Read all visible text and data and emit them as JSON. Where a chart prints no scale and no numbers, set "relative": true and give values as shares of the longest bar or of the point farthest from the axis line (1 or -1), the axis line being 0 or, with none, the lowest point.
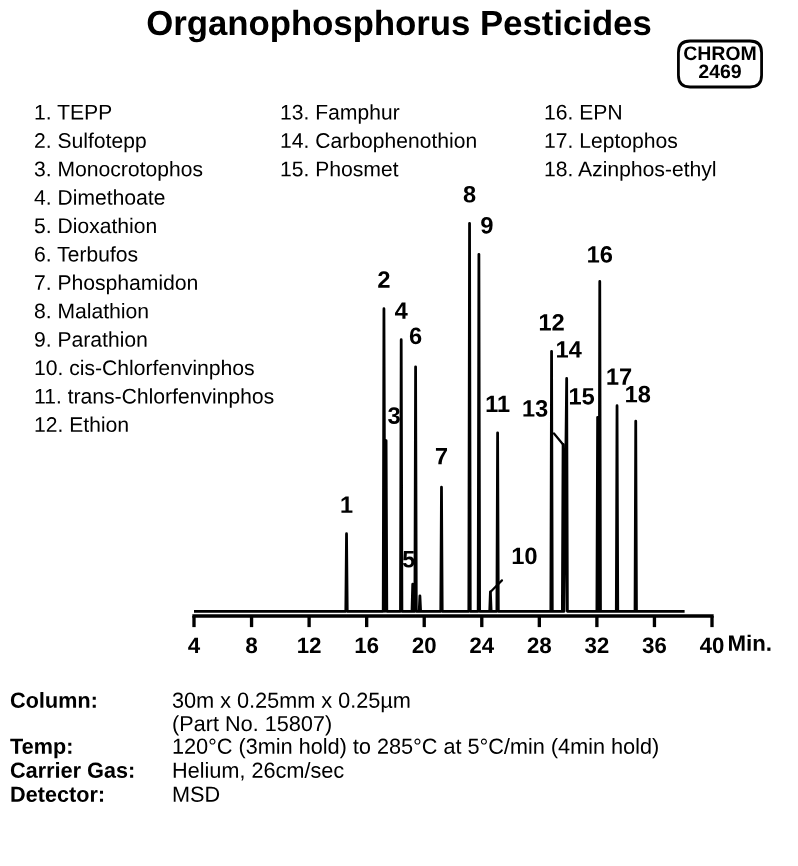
{
  "chart_data": {
    "type": "line",
    "title": "Organophosphorus Pesticides",
    "relative": true,
    "xlim": [
      4,
      40
    ],
    "xticks": [
      4,
      8,
      12,
      16,
      20,
      24,
      28,
      32,
      36,
      40
    ],
    "xlabel": "Min.",
    "grid": false,
    "marker": "none",
    "line_style": "solid",
    "series": [
      {
        "color": "#000000",
        "x": [
          4.0,
          14.55,
          14.6,
          14.65,
          17.15,
          17.2,
          17.27,
          17.35,
          17.4,
          18.35,
          18.4,
          18.45,
          19.15,
          19.2,
          19.25,
          19.35,
          19.4,
          19.45,
          19.65,
          19.7,
          19.75,
          21.15,
          21.2,
          21.25,
          23.1,
          23.15,
          23.2,
          23.75,
          23.8,
          23.85,
          24.55,
          24.6,
          24.65,
          25.05,
          25.1,
          25.15,
          28.8,
          28.85,
          28.9,
          29.6,
          29.65,
          29.72,
          29.9,
          29.95,
          32.0,
          32.05,
          32.1,
          32.15,
          32.2,
          32.25,
          33.35,
          33.4,
          33.45,
          34.65,
          34.7,
          34.75,
          38.0
        ],
        "values": [
          0,
          0,
          0.2,
          0,
          0,
          0.78,
          0,
          0.44,
          0,
          0,
          0.7,
          0,
          0,
          0.07,
          0,
          0,
          0.63,
          0,
          0,
          0.04,
          0,
          0,
          0.32,
          0,
          0,
          1.0,
          0,
          0,
          0.92,
          0,
          0,
          0.05,
          0,
          0,
          0.46,
          0,
          0,
          0.67,
          0,
          0,
          0.43,
          0,
          0.6,
          0,
          0,
          0.5,
          0,
          0,
          0.85,
          0,
          0,
          0.53,
          0,
          0,
          0.49,
          0,
          0
        ]
      }
    ],
    "annotations": [
      "CHROM\n2469",
      "1. TEPP",
      "2. Sulfotepp",
      "3. Monocrotophos",
      "4. Dimethoate",
      "5. Dioxathion",
      "6. Terbufos",
      "7. Phosphamidon",
      "8. Malathion",
      "9. Parathion",
      "10. cis-Chlorfenvinphos",
      "11. trans-Chlorfenvinphos",
      "12. Ethion",
      "13. Famphur",
      "14. Carbophenothion",
      "15. Phosmet",
      "16. EPN",
      "17. Leptophos",
      "18. Azinphos-ethyl",
      "Column:",
      "30m x 0.25mm x 0.25µm\n(Part No. 15807)",
      "Temp:",
      "120°C (3min hold) to 285°C at 5°C/min (4min hold)",
      "Carrier Gas:",
      "Helium, 26cm/sec",
      "Detector:",
      "MSD",
      {
        "text": "1",
        "x": 14.6,
        "y": 0.2
      },
      {
        "text": "2",
        "x": 17.2,
        "y": 0.78
      },
      {
        "text": "3",
        "x": 17.35,
        "y": 0.44
      },
      {
        "text": "4",
        "x": 18.4,
        "y": 0.7
      },
      {
        "text": "5",
        "x": 19.2,
        "y": 0.07
      },
      {
        "text": "6",
        "x": 19.4,
        "y": 0.63
      },
      {
        "text": "7",
        "x": 21.2,
        "y": 0.32
      },
      {
        "text": "8",
        "x": 23.15,
        "y": 1.0
      },
      {
        "text": "9",
        "x": 23.8,
        "y": 0.92
      },
      {
        "text": "10",
        "x": 24.6,
        "y": 0.05
      },
      {
        "text": "11",
        "x": 25.1,
        "y": 0.46
      },
      {
        "text": "12",
        "x": 28.85,
        "y": 0.67
      },
      {
        "text": "13",
        "x": 29.65,
        "y": 0.43
      },
      {
        "text": "14",
        "x": 29.9,
        "y": 0.6
      },
      {
        "text": "15",
        "x": 32.05,
        "y": 0.5
      },
      {
        "text": "16",
        "x": 32.2,
        "y": 0.85
      },
      {
        "text": "17",
        "x": 33.4,
        "y": 0.53
      },
      {
        "text": "18",
        "x": 34.7,
        "y": 0.49
      }
    ]
  }
}
